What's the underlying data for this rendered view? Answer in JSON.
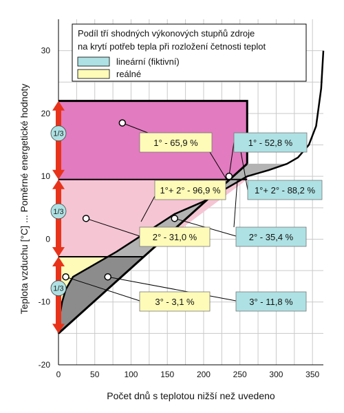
{
  "chart_data": {
    "type": "area",
    "xlabel": "Počet dnů s teplotou nižší než uvedeno",
    "ylabel": "Teplota vzduchu [°C] ... Poměrné energetické hodnoty",
    "xlim": [
      0,
      365
    ],
    "ylim": [
      -20,
      35
    ],
    "x_ticks": [
      "0",
      "50",
      "100",
      "150",
      "200",
      "250",
      "300",
      "350"
    ],
    "y_ticks": [
      "-20",
      "-10",
      "0",
      "10",
      "20",
      "30"
    ],
    "grid": true,
    "legend_position": "top",
    "legend_title_line1": "Podíl tří shodných výkonových stupňů zdroje",
    "legend_title_line2": "na krytí potřeb tepla při rozložení četnosti teplot",
    "legend": [
      {
        "name": "lineární (fiktivní)",
        "color": "#aee1e3"
      },
      {
        "name": "reálné",
        "color": "#fdfbb7"
      }
    ],
    "series": [
      {
        "points": [
          [
            0,
            -15
          ],
          [
            2,
            -12
          ],
          [
            5,
            -10
          ],
          [
            10,
            -8
          ],
          [
            20,
            -6
          ],
          [
            35,
            -5
          ],
          [
            50,
            -4
          ],
          [
            80,
            -2
          ],
          [
            120,
            1
          ],
          [
            160,
            4
          ],
          [
            200,
            6
          ],
          [
            230,
            8
          ],
          [
            260,
            10
          ],
          [
            290,
            11
          ],
          [
            315,
            12
          ],
          [
            330,
            13
          ],
          [
            345,
            15
          ],
          [
            355,
            18
          ],
          [
            362,
            24
          ],
          [
            365,
            30
          ]
        ]
      },
      {
        "points": [
          [
            0,
            -15
          ],
          [
            260,
            12
          ]
        ]
      }
    ],
    "thirds": {
      "labels": [
        "1/3",
        "1/3",
        "1/3"
      ],
      "boundaries": [
        -15,
        -2.8,
        9.5,
        22
      ]
    },
    "annotations_real": [
      {
        "text": "1° - 65,9 %",
        "point": [
          88,
          18.5
        ]
      },
      {
        "text": "1°+ 2° - 96,9 %"
      },
      {
        "text": "2° - 31,0 %",
        "point": [
          38,
          3.3
        ]
      },
      {
        "text": "3° - 3,1 %",
        "point": [
          10,
          -6
        ]
      }
    ],
    "annotations_linear": [
      {
        "text": "1° - 52,8 %",
        "point": [
          235,
          10
        ]
      },
      {
        "text": "1°+ 2° - 88,2 %"
      },
      {
        "text": "2° - 35,4 %",
        "point": [
          160,
          3.3
        ]
      },
      {
        "text": "3° - 11,8 %",
        "point": [
          68,
          -6
        ]
      }
    ],
    "colors": {
      "top_band": "#e27bbf",
      "mid_band": "#f5c5d4",
      "bottom_band": "#fdfbb7",
      "gap_fill": "#b3b3b3",
      "dark_fill": "#8c8c8c",
      "arrow_red": "#e8331b",
      "third_circle": "#aee1e3",
      "real_box": "#fdfbb7",
      "linear_box": "#aee1e3"
    }
  }
}
